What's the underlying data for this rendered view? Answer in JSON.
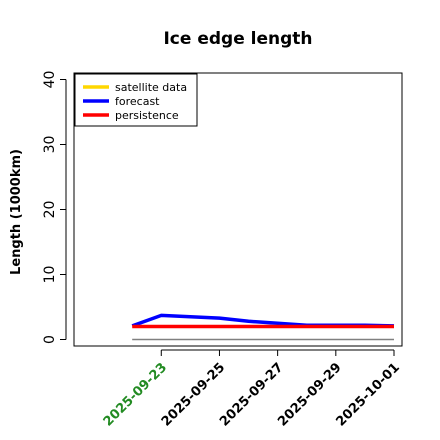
{
  "chart_data": {
    "type": "line",
    "title": "Ice edge length",
    "xlabel": "",
    "ylabel": "Length (1000km)",
    "x": [
      "2025-09-22",
      "2025-09-23",
      "2025-09-24",
      "2025-09-25",
      "2025-09-26",
      "2025-09-27",
      "2025-09-28",
      "2025-09-29",
      "2025-09-30",
      "2025-10-01"
    ],
    "xlim": [
      "2025-09-20",
      "2025-10-01"
    ],
    "xticks": [
      "2025-09-23",
      "2025-09-25",
      "2025-09-27",
      "2025-09-29",
      "2025-10-01"
    ],
    "xtick_colors": [
      "#228b22",
      "#000000",
      "#000000",
      "#000000",
      "#000000"
    ],
    "ylim": [
      -1,
      41
    ],
    "yticks": [
      0,
      10,
      20,
      30,
      40
    ],
    "legend_position": "top-left",
    "grid": false,
    "baseline": {
      "y": 0,
      "color": "#808080"
    },
    "series": [
      {
        "name": "satellite data",
        "color": "#ffd700",
        "values": [
          null,
          null,
          null,
          null,
          null,
          null,
          null,
          null,
          null,
          null
        ]
      },
      {
        "name": "forecast",
        "color": "#0000ff",
        "values": [
          2.1,
          3.7,
          3.5,
          3.3,
          2.8,
          2.5,
          2.2,
          2.2,
          2.2,
          2.1
        ]
      },
      {
        "name": "persistence",
        "color": "#ff0000",
        "values": [
          2.0,
          2.0,
          2.0,
          2.0,
          2.0,
          2.0,
          2.0,
          2.0,
          2.0,
          2.0
        ]
      }
    ]
  }
}
